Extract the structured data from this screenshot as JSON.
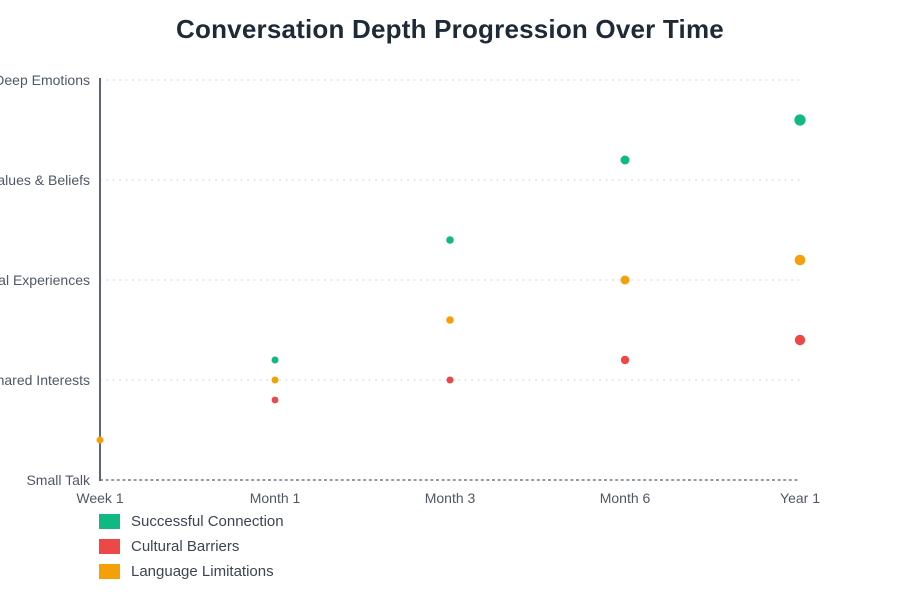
{
  "page": {
    "background_color": "#ffffff"
  },
  "chart_data": {
    "type": "scatter",
    "title": "Conversation Depth Progression Over Time",
    "xlabel": "",
    "ylabel": "",
    "x_categories": [
      "Week 1",
      "Month 1",
      "Month 3",
      "Month 6",
      "Year 1"
    ],
    "y_categories_bottom_to_top": [
      "Small Talk",
      "Shared Interests",
      "Personal Experiences",
      "Values & Beliefs",
      "Deep Emotions"
    ],
    "y_tick_values": [
      0,
      1,
      2,
      3,
      4
    ],
    "ylim": [
      0,
      4
    ],
    "grid": "horizontal-dotted",
    "legend_position": "bottom-left",
    "axis_colors": {
      "y_axis_line": "#5d6673",
      "x_axis_dashed_line": "#949ca8",
      "gridline_dotted": "#e6e8ec",
      "tick_label": "#4f5866",
      "title": "#1f2a37"
    },
    "series": [
      {
        "name": "Successful Connection",
        "color": "#10b981",
        "points": [
          {
            "x": "Month 1",
            "y": 1.2,
            "r": 3.5
          },
          {
            "x": "Month 3",
            "y": 2.4,
            "r": 3.8
          },
          {
            "x": "Month 6",
            "y": 3.2,
            "r": 4.5
          },
          {
            "x": "Year 1",
            "y": 3.6,
            "r": 5.6
          }
        ]
      },
      {
        "name": "Cultural Barriers",
        "color": "#ee4747",
        "points": [
          {
            "x": "Month 1",
            "y": 0.8,
            "r": 3.4
          },
          {
            "x": "Month 3",
            "y": 1.0,
            "r": 3.5
          },
          {
            "x": "Month 6",
            "y": 1.2,
            "r": 4.2
          },
          {
            "x": "Year 1",
            "y": 1.4,
            "r": 5.2
          }
        ]
      },
      {
        "name": "Language Limitations",
        "color": "#f5a009",
        "points": [
          {
            "x": "Week 1",
            "y": 0.4,
            "r": 3.5
          },
          {
            "x": "Month 1",
            "y": 1.0,
            "r": 3.5
          },
          {
            "x": "Month 3",
            "y": 1.6,
            "r": 3.8
          },
          {
            "x": "Month 6",
            "y": 2.0,
            "r": 4.5
          },
          {
            "x": "Year 1",
            "y": 2.2,
            "r": 5.3
          }
        ]
      }
    ]
  }
}
